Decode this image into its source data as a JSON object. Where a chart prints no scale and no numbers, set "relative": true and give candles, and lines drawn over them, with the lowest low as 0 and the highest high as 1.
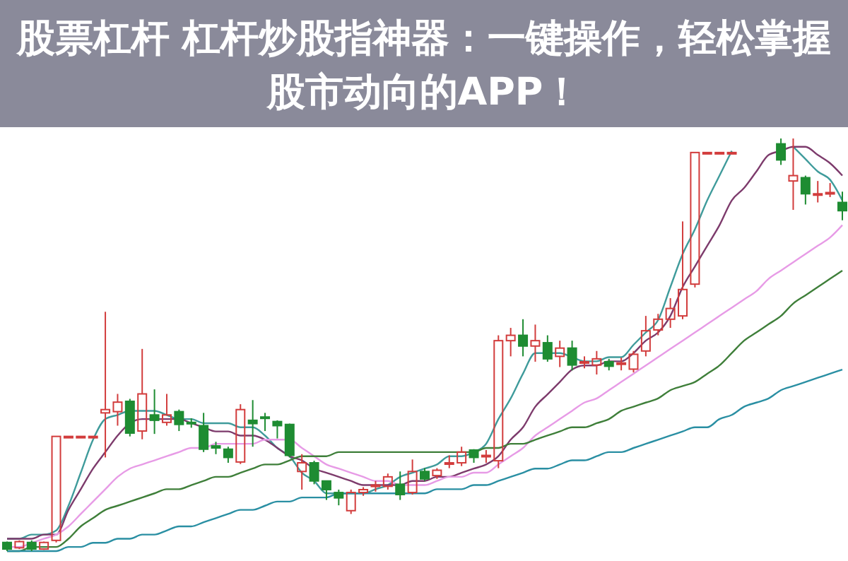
{
  "chart_data": {
    "type": "candlestick",
    "title": "股票杠杆 杠杆炒股指神器：一键操作，轻松掌握股市动向的APP！",
    "relative": true,
    "categories": [
      null,
      null,
      null,
      null,
      null,
      null,
      null,
      null,
      null,
      null,
      null,
      null,
      null,
      null,
      null,
      null,
      null,
      null,
      null,
      null,
      null,
      null,
      null,
      null,
      null,
      null,
      null,
      null,
      null,
      null,
      null,
      null,
      null,
      null,
      null,
      null,
      null,
      null,
      null,
      null,
      null,
      null,
      null,
      null,
      null,
      null,
      null,
      null,
      null,
      null,
      null,
      null,
      null,
      null,
      null,
      null,
      null,
      null,
      null,
      null,
      null,
      null,
      null,
      null,
      null,
      null,
      null,
      null,
      null
    ],
    "colors": [
      "#1e8c32",
      "#d23c3c",
      "#1e8c32",
      "#d23c3c",
      "#d23c3c",
      "#d23c3c",
      "#d23c3c",
      "#d23c3c",
      "#d23c3c",
      "#d23c3c",
      "#1e8c32",
      "#d23c3c",
      "#1e8c32",
      "#d23c3c",
      "#1e8c32",
      "#1e8c32",
      "#1e8c32",
      "#1e8c32",
      "#1e8c32",
      "#d23c3c",
      "#1e8c32",
      "#1e8c32",
      "#1e8c32",
      "#1e8c32",
      "#d23c3c",
      "#1e8c32",
      "#1e8c32",
      "#1e8c32",
      "#d23c3c",
      "#d23c3c",
      "#d23c3c",
      "#d23c3c",
      "#1e8c32",
      "#d23c3c",
      "#1e8c32",
      "#d23c3c",
      "#d23c3c",
      "#d23c3c",
      "#1e8c32",
      "#d23c3c",
      "#d23c3c",
      "#d23c3c",
      "#1e8c32",
      "#d23c3c",
      "#1e8c32",
      "#d23c3c",
      "#1e8c32",
      "#d23c3c",
      "#d23c3c",
      "#1e8c32",
      "#d23c3c",
      "#d23c3c",
      "#d23c3c",
      "#d23c3c",
      "#d23c3c",
      "#d23c3c",
      "#d23c3c",
      "#d23c3c",
      "#d23c3c",
      "#d23c3c",
      null,
      null,
      null,
      "#1e8c32",
      "#d23c3c",
      "#1e8c32",
      "#d23c3c",
      "#d23c3c",
      "#1e8c32"
    ],
    "ohlc": [
      [
        0.021,
        0.023,
        0,
        0.005
      ],
      [
        0.008,
        0.026,
        0.005,
        0.023
      ],
      [
        0.021,
        0.026,
        0,
        0.005
      ],
      [
        0.005,
        0.023,
        0.003,
        0.021
      ],
      [
        0.026,
        0.278,
        0.021,
        0.278
      ],
      [
        0.278,
        0.278,
        0.278,
        0.278
      ],
      [
        0.278,
        0.278,
        0.278,
        0.278
      ],
      [
        0.278,
        0.278,
        0.278,
        0.278
      ],
      [
        0.335,
        0.58,
        0.227,
        0.343
      ],
      [
        0.338,
        0.381,
        0.304,
        0.361
      ],
      [
        0.363,
        0.369,
        0.278,
        0.286
      ],
      [
        0.291,
        0.49,
        0.271,
        0.381
      ],
      [
        0.33,
        0.392,
        0.284,
        0.317
      ],
      [
        0.312,
        0.381,
        0.304,
        0.33
      ],
      [
        0.338,
        0.343,
        0.291,
        0.307
      ],
      [
        0.312,
        0.322,
        0.299,
        0.309
      ],
      [
        0.304,
        0.335,
        0.24,
        0.247
      ],
      [
        0.255,
        0.265,
        0.235,
        0.25
      ],
      [
        0.247,
        0.253,
        0.214,
        0.227
      ],
      [
        0.216,
        0.356,
        0.211,
        0.343
      ],
      [
        0.317,
        0.366,
        0.253,
        0.309
      ],
      [
        0.325,
        0.335,
        0.291,
        0.322
      ],
      [
        0.314,
        0.317,
        0.273,
        0.304
      ],
      [
        0.307,
        0.309,
        0.227,
        0.232
      ],
      [
        0.193,
        0.235,
        0.149,
        0.214
      ],
      [
        0.214,
        0.219,
        0.162,
        0.17
      ],
      [
        0.17,
        0.17,
        0.124,
        0.149
      ],
      [
        0.142,
        0.149,
        0.111,
        0.129
      ],
      [
        0.098,
        0.149,
        0.09,
        0.142
      ],
      [
        0.142,
        0.155,
        0.134,
        0.149
      ],
      [
        0.157,
        0.17,
        0.144,
        0.16
      ],
      [
        0.157,
        0.188,
        0.149,
        0.18
      ],
      [
        0.162,
        0.193,
        0.124,
        0.137
      ],
      [
        0.142,
        0.222,
        0.137,
        0.193
      ],
      [
        0.193,
        0.201,
        0.17,
        0.175
      ],
      [
        0.183,
        0.201,
        0.175,
        0.196
      ],
      [
        0.211,
        0.232,
        0.201,
        0.214
      ],
      [
        0.214,
        0.253,
        0.206,
        0.24
      ],
      [
        0.245,
        0.247,
        0.214,
        0.227
      ],
      [
        0.229,
        0.245,
        0.214,
        0.232
      ],
      [
        0.219,
        0.523,
        0.201,
        0.51
      ],
      [
        0.51,
        0.541,
        0.472,
        0.523
      ],
      [
        0.523,
        0.562,
        0.472,
        0.497
      ],
      [
        0.497,
        0.549,
        0.459,
        0.51
      ],
      [
        0.505,
        0.523,
        0.459,
        0.466
      ],
      [
        0.472,
        0.51,
        0.446,
        0.492
      ],
      [
        0.492,
        0.51,
        0.438,
        0.451
      ],
      [
        0.456,
        0.472,
        0.443,
        0.459
      ],
      [
        0.451,
        0.485,
        0.428,
        0.466
      ],
      [
        0.459,
        0.466,
        0.438,
        0.448
      ],
      [
        0.454,
        0.469,
        0.438,
        0.456
      ],
      [
        0.441,
        0.485,
        0.433,
        0.477
      ],
      [
        0.485,
        0.57,
        0.472,
        0.534
      ],
      [
        0.536,
        0.575,
        0.523,
        0.562
      ],
      [
        0.562,
        0.613,
        0.541,
        0.588
      ],
      [
        0.57,
        0.799,
        0.562,
        0.634
      ],
      [
        0.647,
        0.966,
        0.639,
        0.966
      ],
      [
        0.966,
        0.966,
        0.966,
        0.966
      ],
      [
        0.966,
        0.966,
        0.966,
        0.966
      ],
      [
        0.966,
        0.966,
        0.966,
        0.966
      ],
      null,
      null,
      null,
      [
        0.987,
        1,
        0.936,
        0.948
      ],
      [
        0.897,
        1,
        0.827,
        0.91
      ],
      [
        0.905,
        0.91,
        0.84,
        0.866
      ],
      [
        0.863,
        0.897,
        0.845,
        0.866
      ],
      [
        0.866,
        0.892,
        0.858,
        0.869
      ],
      [
        0.845,
        0.871,
        0.802,
        0.825
      ]
    ],
    "series": [
      {
        "type": "line",
        "color": "#3f9b9b",
        "values": [
          0.03,
          0.03,
          0.04,
          0.04,
          0.05,
          0.11,
          0.19,
          0.27,
          0.32,
          0.33,
          0.34,
          0.34,
          0.34,
          0.33,
          0.32,
          0.32,
          0.31,
          0.31,
          0.31,
          0.3,
          0.3,
          0.28,
          0.25,
          0.23,
          0.19,
          0.17,
          0.14,
          0.14,
          0.14,
          0.14,
          0.15,
          0.16,
          0.18,
          0.19,
          0.2,
          0.21,
          0.23,
          0.23,
          0.24,
          0.26,
          0.32,
          0.37,
          0.43,
          0.48,
          0.48,
          0.48,
          0.47,
          0.46,
          0.46,
          0.47,
          0.47,
          0.5,
          0.53,
          0.56,
          0.64,
          0.72,
          0.78,
          0.85,
          0.91,
          0.97,
          null,
          null,
          null,
          null,
          0.98,
          0.95,
          0.92,
          0.9,
          0.85
        ]
      },
      {
        "type": "line",
        "color": "#7d3b6c",
        "values": [
          0.03,
          0.03,
          0.03,
          0.04,
          0.04,
          0.1,
          0.15,
          0.2,
          0.24,
          0.28,
          0.31,
          0.32,
          0.32,
          0.32,
          0.32,
          0.31,
          0.3,
          0.29,
          0.29,
          0.28,
          0.28,
          0.27,
          0.25,
          0.23,
          0.22,
          0.2,
          0.19,
          0.18,
          0.17,
          0.16,
          0.16,
          0.16,
          0.16,
          0.17,
          0.17,
          0.18,
          0.18,
          0.19,
          0.2,
          0.21,
          0.23,
          0.27,
          0.3,
          0.35,
          0.38,
          0.41,
          0.44,
          0.45,
          0.45,
          0.46,
          0.46,
          0.48,
          0.51,
          0.53,
          0.57,
          0.64,
          0.69,
          0.74,
          0.79,
          0.85,
          0.88,
          0.92,
          0.96,
          0.97,
          0.98,
          0.98,
          0.96,
          0.94,
          0.91
        ]
      },
      {
        "type": "line",
        "color": "#e79be6",
        "values": [
          0.01,
          0.01,
          0.02,
          0.03,
          0.04,
          0.06,
          0.09,
          0.12,
          0.15,
          0.18,
          0.2,
          0.21,
          0.22,
          0.23,
          0.24,
          0.25,
          0.25,
          0.26,
          0.26,
          0.26,
          0.26,
          0.27,
          0.27,
          0.27,
          0.25,
          0.23,
          0.21,
          0.2,
          0.19,
          0.18,
          0.17,
          0.17,
          0.16,
          0.16,
          0.16,
          0.17,
          0.18,
          0.18,
          0.19,
          0.19,
          0.21,
          0.23,
          0.25,
          0.28,
          0.3,
          0.32,
          0.34,
          0.36,
          0.37,
          0.39,
          0.41,
          0.43,
          0.45,
          0.47,
          0.49,
          0.51,
          0.53,
          0.55,
          0.57,
          0.59,
          0.61,
          0.63,
          0.66,
          0.68,
          0.7,
          0.72,
          0.74,
          0.76,
          0.79
        ]
      },
      {
        "type": "line",
        "color": "#3f7f3a",
        "values": [
          0,
          0,
          0.01,
          0.01,
          0.01,
          0.03,
          0.06,
          0.08,
          0.1,
          0.11,
          0.12,
          0.13,
          0.14,
          0.15,
          0.15,
          0.16,
          0.17,
          0.18,
          0.18,
          0.19,
          0.2,
          0.21,
          0.21,
          0.22,
          0.23,
          0.23,
          0.23,
          0.24,
          0.24,
          0.24,
          0.24,
          0.24,
          0.24,
          0.24,
          0.24,
          0.24,
          0.24,
          0.24,
          0.24,
          0.25,
          0.25,
          0.26,
          0.26,
          0.27,
          0.28,
          0.29,
          0.3,
          0.3,
          0.31,
          0.32,
          0.34,
          0.35,
          0.36,
          0.37,
          0.39,
          0.4,
          0.41,
          0.43,
          0.45,
          0.48,
          0.51,
          0.53,
          0.55,
          0.57,
          0.6,
          0.62,
          0.64,
          0.66,
          0.68
        ]
      },
      {
        "type": "line",
        "color": "#2a8fa3",
        "values": [
          0,
          0,
          0,
          0,
          0,
          0.01,
          0.01,
          0.02,
          0.02,
          0.03,
          0.03,
          0.04,
          0.04,
          0.05,
          0.06,
          0.06,
          0.07,
          0.08,
          0.09,
          0.1,
          0.1,
          0.11,
          0.12,
          0.12,
          0.13,
          0.13,
          0.13,
          0.14,
          0.14,
          0.14,
          0.14,
          0.14,
          0.14,
          0.14,
          0.14,
          0.15,
          0.15,
          0.15,
          0.16,
          0.16,
          0.17,
          0.18,
          0.19,
          0.2,
          0.2,
          0.21,
          0.22,
          0.22,
          0.23,
          0.24,
          0.24,
          0.25,
          0.26,
          0.27,
          0.28,
          0.29,
          0.3,
          0.3,
          0.32,
          0.33,
          0.35,
          0.36,
          0.37,
          0.39,
          0.4,
          0.41,
          0.42,
          0.43,
          0.44
        ]
      }
    ]
  }
}
